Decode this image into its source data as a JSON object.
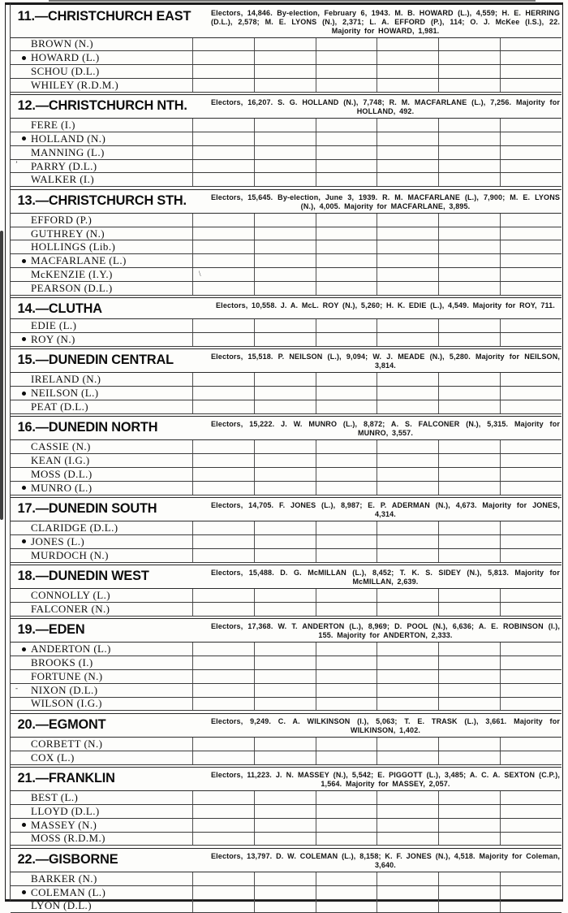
{
  "columns": 6,
  "sections": [
    {
      "title": "11.—CHRISTCHURCH EAST",
      "summary": "Electors, 14,846. By-election, February 6, 1943. M. B. HOWARD (L.), 4,559; H. E. HERRING (D.L.), 2,578; M. E. LYONS (N.), 2,371; L. A. EFFORD (P.), 114; O. J. McKee (I.S.), 22. Majority for HOWARD, 1,981.",
      "candidates": [
        {
          "name": "BROWN (N.)",
          "elected": false
        },
        {
          "name": "HOWARD (L.)",
          "elected": true
        },
        {
          "name": "SCHOU (D.L.)",
          "elected": false
        },
        {
          "name": "WHILEY (R.D.M.)",
          "elected": false
        }
      ]
    },
    {
      "title": "12.—CHRISTCHURCH NTH.",
      "summary": "Electors, 16,207. S. G. HOLLAND (N.), 7,748; R. M. MACFARLANE (L.), 7,256. Majority for HOLLAND, 492.",
      "candidates": [
        {
          "name": "FERE (I.)",
          "elected": false
        },
        {
          "name": "HOLLAND (N.)",
          "elected": true
        },
        {
          "name": "MANNING (L.)",
          "elected": false
        },
        {
          "name": "PARRY (D.L.)",
          "elected": false,
          "premark": "’"
        },
        {
          "name": "WALKER (I.)",
          "elected": false
        }
      ]
    },
    {
      "title": "13.—CHRISTCHURCH STH.",
      "summary": "Electors, 15,645. By-election, June 3, 1939. R. M. MACFARLANE (L.), 7,900; M. E. LYONS (N.), 4,005. Majority for MACFARLANE, 3,895.",
      "candidates": [
        {
          "name": "EFFORD (P.)",
          "elected": false
        },
        {
          "name": "GUTHREY (N.)",
          "elected": false
        },
        {
          "name": "HOLLINGS (Lib.)",
          "elected": false
        },
        {
          "name": "MACFARLANE (L.)",
          "elected": true
        },
        {
          "name": "McKENZIE (I.Y.)",
          "elected": false,
          "cell_mark": "\\"
        },
        {
          "name": "PEARSON (D.L.)",
          "elected": false
        }
      ]
    },
    {
      "title": "14.—CLUTHA",
      "summary": "Electors, 10,558. J. A. McL. ROY (N.), 5,260; H. K. EDIE (L.), 4,549. Majority for ROY, 711.",
      "candidates": [
        {
          "name": "EDIE (L.)",
          "elected": false
        },
        {
          "name": "ROY (N.)",
          "elected": true
        }
      ]
    },
    {
      "title": "15.—DUNEDIN CENTRAL",
      "summary": "Electors, 15,518. P. NEILSON (L.), 9,094; W. J. MEADE (N.), 5,280. Majority for NEILSON, 3,814.",
      "candidates": [
        {
          "name": "IRELAND (N.)",
          "elected": false
        },
        {
          "name": "NEILSON (L.)",
          "elected": true
        },
        {
          "name": "PEAT (D.L.)",
          "elected": false
        }
      ]
    },
    {
      "title": "16.—DUNEDIN NORTH",
      "summary": "Electors, 15,222. J. W. MUNRO (L.), 8,872; A. S. FALCONER (N.), 5,315. Majority for MUNRO, 3,557.",
      "candidates": [
        {
          "name": "CASSIE (N.)",
          "elected": false
        },
        {
          "name": "KEAN (I.G.)",
          "elected": false
        },
        {
          "name": "MOSS (D.L.)",
          "elected": false
        },
        {
          "name": "MUNRO (L.)",
          "elected": true
        }
      ]
    },
    {
      "title": "17.—DUNEDIN SOUTH",
      "summary": "Electors, 14,705. F. JONES (L.), 8,987; E. P. ADERMAN (N.), 4,673. Majority for JONES, 4,314.",
      "candidates": [
        {
          "name": "CLARIDGE (D.L.)",
          "elected": false
        },
        {
          "name": "JONES (L.)",
          "elected": true
        },
        {
          "name": "MURDOCH (N.)",
          "elected": false
        }
      ]
    },
    {
      "title": "18.—DUNEDIN WEST",
      "summary": "Electors, 15,488. D. G. McMILLAN (L.), 8,452; T. K. S. SIDEY (N.), 5,813. Majority for McMILLAN, 2,639.",
      "candidates": [
        {
          "name": "CONNOLLY (L.)",
          "elected": false
        },
        {
          "name": "FALCONER (N.)",
          "elected": false
        }
      ]
    },
    {
      "title": "19.—EDEN",
      "summary": "Electors, 17,368. W. T. ANDERTON (L.), 8,969; D. POOL (N.), 6,636; A. E. ROBINSON (I.), 155. Majority for ANDERTON, 2,333.",
      "candidates": [
        {
          "name": "ANDERTON (L.)",
          "elected": true
        },
        {
          "name": "BROOKS (I.)",
          "elected": false
        },
        {
          "name": "FORTUNE (N.)",
          "elected": false
        },
        {
          "name": "NIXON (D.L.)",
          "elected": false,
          "premark": "-"
        },
        {
          "name": "WILSON (I.G.)",
          "elected": false
        }
      ]
    },
    {
      "title": "20.—EGMONT",
      "summary": "Electors, 9,249. C. A. WILKINSON (I.), 5,063; T. E. TRASK (L.), 3,661. Majority for WILKINSON, 1,402.",
      "candidates": [
        {
          "name": "CORBETT (N.)",
          "elected": false
        },
        {
          "name": "COX (L.)",
          "elected": false
        }
      ]
    },
    {
      "title": "21.—FRANKLIN",
      "summary": "Electors, 11,223. J. N. MASSEY (N.), 5,542; E. PIGGOTT (L.), 3,485; A. C. A. SEXTON (C.P.), 1,564. Majority for MASSEY, 2,057.",
      "candidates": [
        {
          "name": "BEST (L.)",
          "elected": false
        },
        {
          "name": "LLOYD (D.L.)",
          "elected": false
        },
        {
          "name": "MASSEY (N.)",
          "elected": true
        },
        {
          "name": "MOSS (R.D.M.)",
          "elected": false
        }
      ]
    },
    {
      "title": "22.—GISBORNE",
      "summary": "Electors, 13,797. D. W. COLEMAN (L.), 8,158; K. F. JONES (N.), 4,518. Majority for Coleman, 3,640.",
      "candidates": [
        {
          "name": "BARKER (N.)",
          "elected": false
        },
        {
          "name": "COLEMAN (L.)",
          "elected": true
        },
        {
          "name": "LYON (D.L.)",
          "elected": false
        }
      ]
    }
  ]
}
